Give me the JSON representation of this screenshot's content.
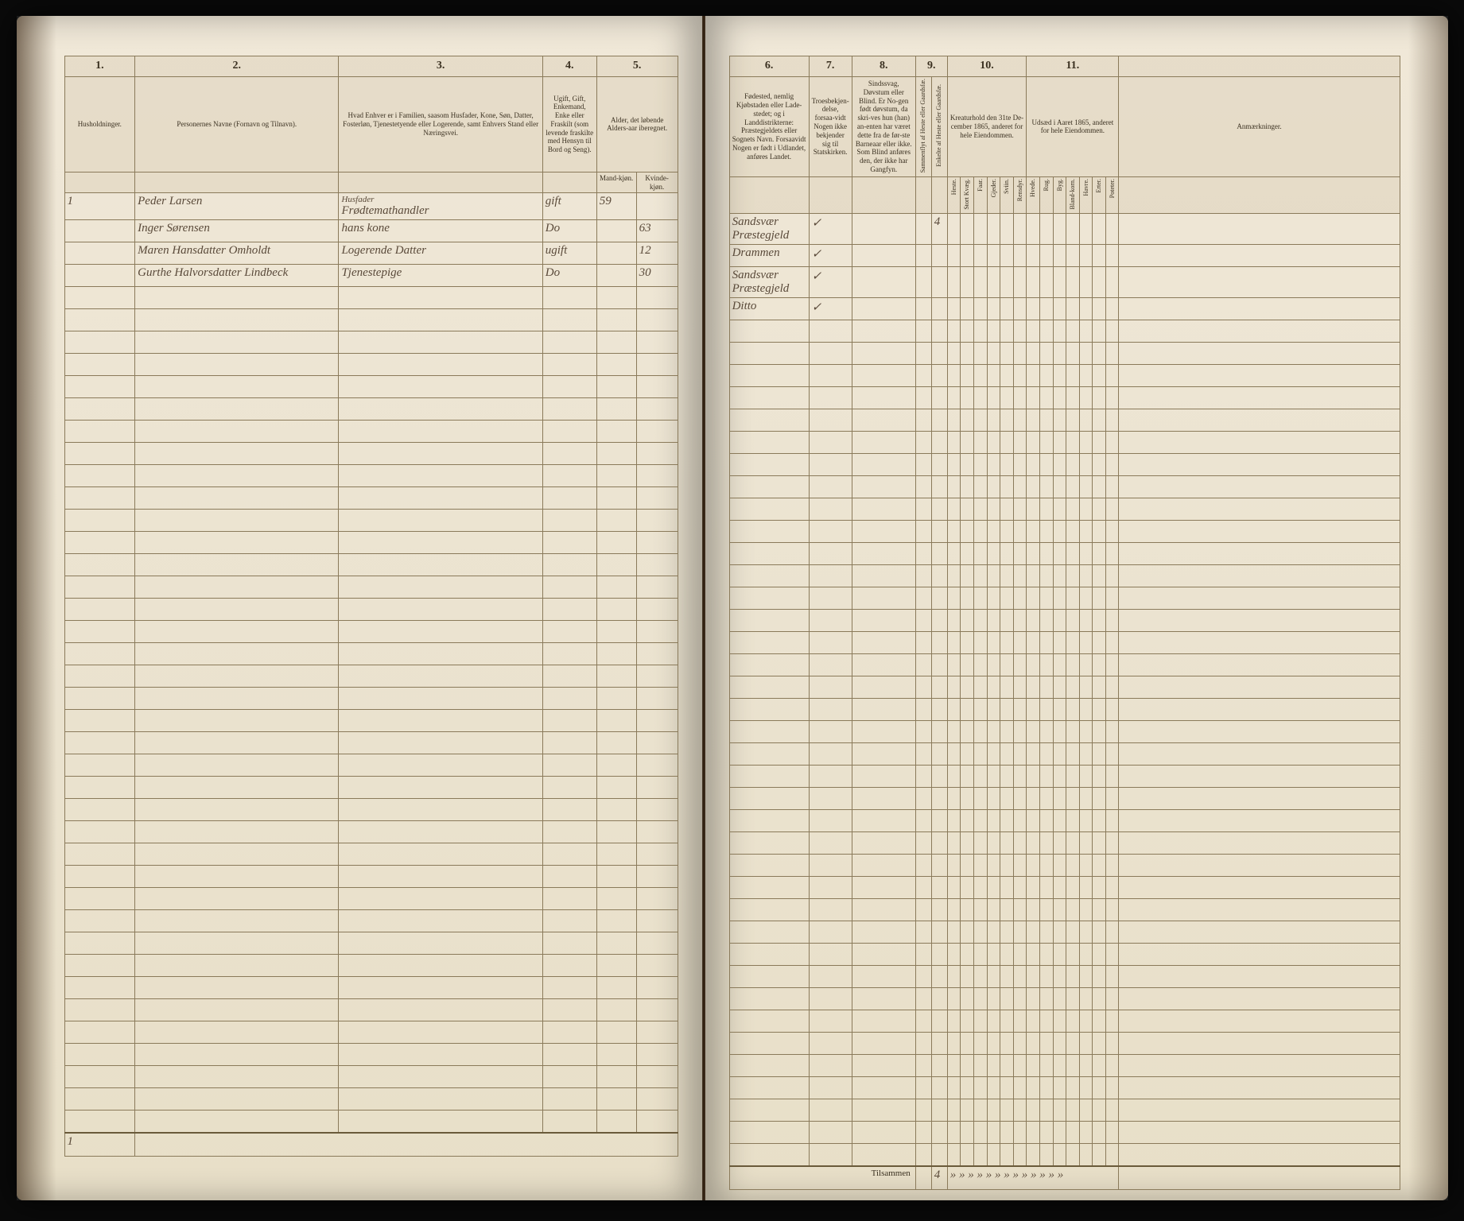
{
  "paper_bg": "#ebe3d0",
  "ink_color": "#3a3020",
  "rule_color": "#8a7a5a",
  "handwriting_color": "#5a4a3a",
  "columns_left": {
    "c1": {
      "num": "1.",
      "label": "Husholdninger."
    },
    "c2": {
      "num": "2.",
      "label": "Personernes Navne (Fornavn og Tilnavn)."
    },
    "c3": {
      "num": "3.",
      "label": "Hvad Enhver er i Familien, saasom Husfader, Kone, Søn, Datter, Fosterløn, Tjenestetyende eller Logerende, samt Enhvers Stand eller Næringsvei."
    },
    "c4": {
      "num": "4.",
      "label": "Ugift, Gift, Enkemand, Enke eller Fraskilt (som levende fraskilte med Hensyn til Bord og Seng)."
    },
    "c5": {
      "num": "5.",
      "label": "Alder, det løbende Alders-aar iberegnet.",
      "sub_m": "Mand-kjøn.",
      "sub_k": "Kvinde-kjøn."
    }
  },
  "columns_right": {
    "c6": {
      "num": "6.",
      "label": "Fødested, nemlig Kjøbstaden eller Lade-stedet; og i Landdistrikterne: Præstegjeldets eller Sognets Navn. Forsaavidt Nogen er født i Udlandet, anføres Landet."
    },
    "c7": {
      "num": "7.",
      "label": "Troesbekjen-delse, forsaa-vidt Nogen ikke bekjender sig til Statskirken."
    },
    "c8": {
      "num": "8.",
      "label": "Sindssvag, Døvstum eller Blind. Er No-gen født døvstum, da skri-ves hun (han) an-enten har været dette fra de før-ste Barneaar eller ikke. Som Blind anføres den, der ikke har Gangfyn."
    },
    "c9": {
      "num": "9.",
      "sub1": "Sammenflyt af Heste eller Gaardsfæ.",
      "sub2": "Enkelte af Heste eller Gaardsfæ."
    },
    "c10": {
      "num": "10.",
      "label": "Kreaturhold den 31te De-cember 1865, anderet for hele Eiendommen.",
      "subs": [
        "Heste.",
        "Stort Kvæg.",
        "Faar.",
        "Gjeder.",
        "Sviin.",
        "Rensdyr."
      ]
    },
    "c11": {
      "num": "11.",
      "label": "Udsæd i Aaret 1865, anderet for hele Eiendommen.",
      "subs": [
        "Hvede.",
        "Rug.",
        "Byg.",
        "Bland-korn.",
        "Havre.",
        "Erter.",
        "Poteter."
      ]
    },
    "c12": {
      "label": "Anmærkninger."
    }
  },
  "rows": [
    {
      "hh": "1",
      "name": "Peder Larsen",
      "role_prefix": "Husfader",
      "role": "Frødtemathandler",
      "status": "gift",
      "age_m": "59",
      "age_k": "",
      "birth": "Sandsvær Præstegjeld",
      "rel": "✓",
      "c9_1": "",
      "c9_2": "4"
    },
    {
      "hh": "",
      "name": "Inger Sørensen",
      "role": "hans kone",
      "status": "Do",
      "age_m": "",
      "age_k": "63",
      "birth": "Drammen",
      "rel": "✓",
      "c9_1": "",
      "c9_2": ""
    },
    {
      "hh": "",
      "name": "Maren Hansdatter Omholdt",
      "role": "Logerende Datter",
      "status": "ugift",
      "age_m": "",
      "age_k": "12",
      "birth": "Sandsvær Præstegjeld",
      "rel": "✓",
      "c9_1": "",
      "c9_2": ""
    },
    {
      "hh": "",
      "name": "Gurthe Halvorsdatter Lindbeck",
      "role": "Tjenestepige",
      "status": "Do",
      "age_m": "",
      "age_k": "30",
      "birth": "Ditto",
      "rel": "✓",
      "c9_1": "",
      "c9_2": ""
    }
  ],
  "footer": {
    "left_total": "1",
    "right_label": "Tilsammen",
    "right_total": "4",
    "ticks": "»  »  »  »  »  »  »  »  »  »  »  »  »"
  },
  "empty_row_count": 38
}
